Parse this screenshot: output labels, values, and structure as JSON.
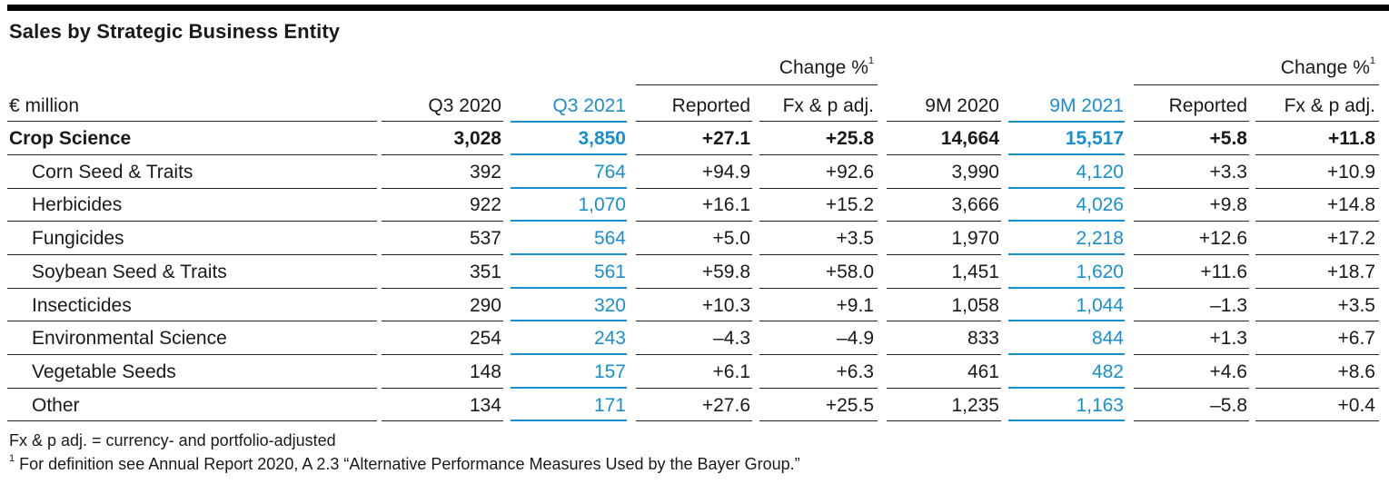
{
  "title": "Sales by Strategic Business Entity",
  "colors": {
    "accent": "#1a8fd0",
    "text": "#1a1a1a",
    "rule": "#000000"
  },
  "header": {
    "group_label": "Change %",
    "group_sup": "1",
    "unit": "€ million",
    "columns": [
      "Q3 2020",
      "Q3 2021",
      "Reported",
      "Fx & p adj.",
      "9M 2020",
      "9M 2021",
      "Reported",
      "Fx & p adj."
    ]
  },
  "rows": [
    {
      "label": "Crop Science",
      "values": [
        "3,028",
        "3,850",
        "+27.1",
        "+25.8",
        "14,664",
        "15,517",
        "+5.8",
        "+11.8"
      ]
    },
    {
      "label": "Corn Seed & Traits",
      "values": [
        "392",
        "764",
        "+94.9",
        "+92.6",
        "3,990",
        "4,120",
        "+3.3",
        "+10.9"
      ]
    },
    {
      "label": "Herbicides",
      "values": [
        "922",
        "1,070",
        "+16.1",
        "+15.2",
        "3,666",
        "4,026",
        "+9.8",
        "+14.8"
      ]
    },
    {
      "label": "Fungicides",
      "values": [
        "537",
        "564",
        "+5.0",
        "+3.5",
        "1,970",
        "2,218",
        "+12.6",
        "+17.2"
      ]
    },
    {
      "label": "Soybean Seed & Traits",
      "values": [
        "351",
        "561",
        "+59.8",
        "+58.0",
        "1,451",
        "1,620",
        "+11.6",
        "+18.7"
      ]
    },
    {
      "label": "Insecticides",
      "values": [
        "290",
        "320",
        "+10.3",
        "+9.1",
        "1,058",
        "1,044",
        "–1.3",
        "+3.5"
      ]
    },
    {
      "label": "Environmental Science",
      "values": [
        "254",
        "243",
        "–4.3",
        "–4.9",
        "833",
        "844",
        "+1.3",
        "+6.7"
      ]
    },
    {
      "label": "Vegetable Seeds",
      "values": [
        "148",
        "157",
        "+6.1",
        "+6.3",
        "461",
        "482",
        "+4.6",
        "+8.6"
      ]
    },
    {
      "label": "Other",
      "values": [
        "134",
        "171",
        "+27.6",
        "+25.5",
        "1,235",
        "1,163",
        "–5.8",
        "+0.4"
      ]
    }
  ],
  "footnotes": {
    "fx_note": "Fx & p adj. = currency- and portfolio-adjusted",
    "note1_sup": "1",
    "note1": " For definition see Annual Report 2020, A 2.3 “Alternative Performance Measures Used by the Bayer Group.”"
  }
}
